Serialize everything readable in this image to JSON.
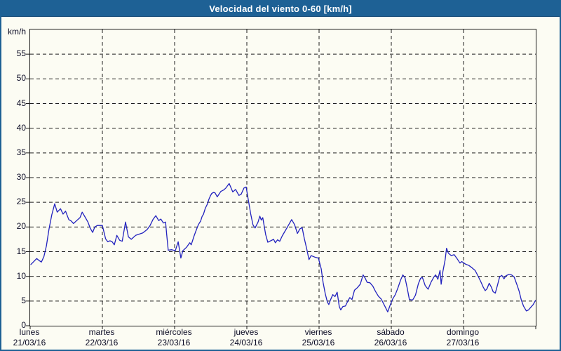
{
  "window": {
    "title": "Velocidad del viento 0-60 [km/h]"
  },
  "colors": {
    "titlebar": "#1e6195",
    "frame": "#1e6195",
    "background": "#fcfcf3",
    "plot_border": "#1b1b1b",
    "grid": "#1b1b1b",
    "line": "#2222be",
    "label_text": "#0a0a23",
    "title_text": "#ffffff"
  },
  "chart_data": {
    "type": "line",
    "title": "Velocidad del viento 0-60 [km/h]",
    "ylabel": "km/h",
    "ylim": [
      0,
      60
    ],
    "y_ticks": [
      0,
      5,
      10,
      15,
      20,
      25,
      30,
      35,
      40,
      45,
      50,
      55
    ],
    "grid": "dashed",
    "legend": "none",
    "x_axis_days": [
      {
        "name": "lunes",
        "date": "21/03/16"
      },
      {
        "name": "martes",
        "date": "22/03/16"
      },
      {
        "name": "miércoles",
        "date": "23/03/16"
      },
      {
        "name": "jueves",
        "date": "24/03/16"
      },
      {
        "name": "viernes",
        "date": "25/03/16"
      },
      {
        "name": "sábado",
        "date": "26/03/16"
      },
      {
        "name": "domingo",
        "date": "27/03/16"
      }
    ],
    "series": [
      {
        "name": "Velocidad del viento",
        "color": "#2222be",
        "points_t_days_v_kmh": [
          [
            0.01,
            12.4
          ],
          [
            0.05,
            13.0
          ],
          [
            0.09,
            13.6
          ],
          [
            0.125,
            13.2
          ],
          [
            0.155,
            12.9
          ],
          [
            0.19,
            14.0
          ],
          [
            0.225,
            16.2
          ],
          [
            0.26,
            19.5
          ],
          [
            0.3,
            22.5
          ],
          [
            0.34,
            24.7
          ],
          [
            0.375,
            23.0
          ],
          [
            0.42,
            23.7
          ],
          [
            0.455,
            22.6
          ],
          [
            0.49,
            23.2
          ],
          [
            0.535,
            21.5
          ],
          [
            0.57,
            21.2
          ],
          [
            0.6,
            20.7
          ],
          [
            0.645,
            21.3
          ],
          [
            0.69,
            21.9
          ],
          [
            0.72,
            23.0
          ],
          [
            0.765,
            21.9
          ],
          [
            0.8,
            21.0
          ],
          [
            0.83,
            19.8
          ],
          [
            0.865,
            18.9
          ],
          [
            0.895,
            20.0
          ],
          [
            0.93,
            20.3
          ],
          [
            1.0,
            20.3
          ],
          [
            1.045,
            17.6
          ],
          [
            1.075,
            17.0
          ],
          [
            1.105,
            17.2
          ],
          [
            1.135,
            17.0
          ],
          [
            1.165,
            16.4
          ],
          [
            1.2,
            18.3
          ],
          [
            1.24,
            17.3
          ],
          [
            1.275,
            17.1
          ],
          [
            1.32,
            21.0
          ],
          [
            1.36,
            18.0
          ],
          [
            1.4,
            17.5
          ],
          [
            1.46,
            18.3
          ],
          [
            1.56,
            18.8
          ],
          [
            1.62,
            19.5
          ],
          [
            1.66,
            20.3
          ],
          [
            1.7,
            21.5
          ],
          [
            1.74,
            22.3
          ],
          [
            1.78,
            21.3
          ],
          [
            1.81,
            21.6
          ],
          [
            1.845,
            20.8
          ],
          [
            1.875,
            21.0
          ],
          [
            1.89,
            18.5
          ],
          [
            1.912,
            15.3
          ],
          [
            1.96,
            15.4
          ],
          [
            2.01,
            15.2
          ],
          [
            2.05,
            17.0
          ],
          [
            2.086,
            13.7
          ],
          [
            2.115,
            15.2
          ],
          [
            2.165,
            15.9
          ],
          [
            2.21,
            16.8
          ],
          [
            2.23,
            16.4
          ],
          [
            2.27,
            18.2
          ],
          [
            2.3,
            19.4
          ],
          [
            2.33,
            20.5
          ],
          [
            2.36,
            21.2
          ],
          [
            2.38,
            22.1
          ],
          [
            2.4,
            22.6
          ],
          [
            2.425,
            23.8
          ],
          [
            2.455,
            24.7
          ],
          [
            2.475,
            25.6
          ],
          [
            2.495,
            26.3
          ],
          [
            2.515,
            26.8
          ],
          [
            2.54,
            27.0
          ],
          [
            2.56,
            26.9
          ],
          [
            2.59,
            26.1
          ],
          [
            2.64,
            27.2
          ],
          [
            2.68,
            27.5
          ],
          [
            2.71,
            27.9
          ],
          [
            2.755,
            28.8
          ],
          [
            2.805,
            27.1
          ],
          [
            2.845,
            27.6
          ],
          [
            2.89,
            26.4
          ],
          [
            2.92,
            26.6
          ],
          [
            2.96,
            27.9
          ],
          [
            2.99,
            28.1
          ],
          [
            3.02,
            25.5
          ],
          [
            3.055,
            22.5
          ],
          [
            3.085,
            20.4
          ],
          [
            3.115,
            19.8
          ],
          [
            3.155,
            21.0
          ],
          [
            3.18,
            22.2
          ],
          [
            3.2,
            21.4
          ],
          [
            3.22,
            21.9
          ],
          [
            3.26,
            18.5
          ],
          [
            3.29,
            16.9
          ],
          [
            3.33,
            17.2
          ],
          [
            3.37,
            17.5
          ],
          [
            3.395,
            16.8
          ],
          [
            3.425,
            17.4
          ],
          [
            3.455,
            17.1
          ],
          [
            3.49,
            18.2
          ],
          [
            3.53,
            19.2
          ],
          [
            3.57,
            20.2
          ],
          [
            3.62,
            21.5
          ],
          [
            3.66,
            20.5
          ],
          [
            3.7,
            18.7
          ],
          [
            3.735,
            19.6
          ],
          [
            3.765,
            19.9
          ],
          [
            3.795,
            17.7
          ],
          [
            3.83,
            15.5
          ],
          [
            3.86,
            13.4
          ],
          [
            3.89,
            14.2
          ],
          [
            3.94,
            13.9
          ],
          [
            3.99,
            13.7
          ],
          [
            4.03,
            11.5
          ],
          [
            4.055,
            8.8
          ],
          [
            4.085,
            6.5
          ],
          [
            4.115,
            4.8
          ],
          [
            4.135,
            4.3
          ],
          [
            4.16,
            5.3
          ],
          [
            4.19,
            6.3
          ],
          [
            4.22,
            5.9
          ],
          [
            4.25,
            6.8
          ],
          [
            4.28,
            3.9
          ],
          [
            4.3,
            3.2
          ],
          [
            4.33,
            3.9
          ],
          [
            4.365,
            4.0
          ],
          [
            4.395,
            4.9
          ],
          [
            4.425,
            5.7
          ],
          [
            4.455,
            5.3
          ],
          [
            4.49,
            7.2
          ],
          [
            4.53,
            7.7
          ],
          [
            4.57,
            8.4
          ],
          [
            4.61,
            10.3
          ],
          [
            4.64,
            9.6
          ],
          [
            4.665,
            8.8
          ],
          [
            4.705,
            8.7
          ],
          [
            4.745,
            8.0
          ],
          [
            4.78,
            7.0
          ],
          [
            4.82,
            6.0
          ],
          [
            4.86,
            5.4
          ],
          [
            4.91,
            4.0
          ],
          [
            4.95,
            2.8
          ],
          [
            4.98,
            4.0
          ],
          [
            5.015,
            5.3
          ],
          [
            5.055,
            6.3
          ],
          [
            5.09,
            7.6
          ],
          [
            5.13,
            9.3
          ],
          [
            5.16,
            10.3
          ],
          [
            5.19,
            9.7
          ],
          [
            5.22,
            7.6
          ],
          [
            5.25,
            5.3
          ],
          [
            5.295,
            5.2
          ],
          [
            5.335,
            6.2
          ],
          [
            5.375,
            8.5
          ],
          [
            5.405,
            9.6
          ],
          [
            5.43,
            9.8
          ],
          [
            5.47,
            8.1
          ],
          [
            5.51,
            7.4
          ],
          [
            5.55,
            8.8
          ],
          [
            5.59,
            9.9
          ],
          [
            5.615,
            10.3
          ],
          [
            5.645,
            9.4
          ],
          [
            5.675,
            11.2
          ],
          [
            5.69,
            8.4
          ],
          [
            5.715,
            11.0
          ],
          [
            5.745,
            13.3
          ],
          [
            5.765,
            15.7
          ],
          [
            5.79,
            14.7
          ],
          [
            5.83,
            14.2
          ],
          [
            5.87,
            14.4
          ],
          [
            5.91,
            13.6
          ],
          [
            5.95,
            12.7
          ],
          [
            5.975,
            13.0
          ],
          [
            6.025,
            12.5
          ],
          [
            6.075,
            12.2
          ],
          [
            6.12,
            11.7
          ],
          [
            6.16,
            11.2
          ],
          [
            6.2,
            10.1
          ],
          [
            6.24,
            8.9
          ],
          [
            6.27,
            7.9
          ],
          [
            6.3,
            7.1
          ],
          [
            6.325,
            7.5
          ],
          [
            6.355,
            8.6
          ],
          [
            6.385,
            7.8
          ],
          [
            6.41,
            6.9
          ],
          [
            6.44,
            6.6
          ],
          [
            6.47,
            8.2
          ],
          [
            6.5,
            9.9
          ],
          [
            6.53,
            10.2
          ],
          [
            6.56,
            9.5
          ],
          [
            6.585,
            10.1
          ],
          [
            6.625,
            10.4
          ],
          [
            6.665,
            10.3
          ],
          [
            6.7,
            9.9
          ],
          [
            6.74,
            8.3
          ],
          [
            6.77,
            7.0
          ],
          [
            6.8,
            5.2
          ],
          [
            6.83,
            4.0
          ],
          [
            6.87,
            3.0
          ],
          [
            6.9,
            3.2
          ],
          [
            6.935,
            3.8
          ],
          [
            6.965,
            4.3
          ],
          [
            6.995,
            5.1
          ]
        ]
      }
    ]
  }
}
